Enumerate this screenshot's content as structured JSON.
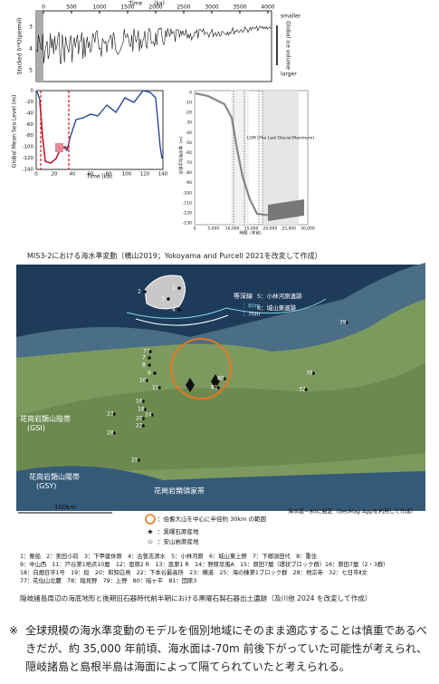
{
  "figure1": {
    "d18o": {
      "x_label": "Time",
      "x_unit": "(ka)",
      "x_ticks": [
        "0",
        "500",
        "1000",
        "1500",
        "2000",
        "2500",
        "3000",
        "3500",
        "4000"
      ],
      "y_label": "Stacked δ¹⁸O(permil)",
      "y_ticks": [
        "3",
        "4",
        "5"
      ],
      "right_labels": [
        "smaller",
        "Global ice volume",
        "larger"
      ]
    },
    "sea_level": {
      "y_label": "Global Mean Sea Level (m)",
      "y_ticks": [
        "0",
        "-20",
        "-40",
        "-60",
        "-80",
        "-100",
        "-120",
        "-140"
      ],
      "x_label": "Time (ka)",
      "x_ticks": [
        "0",
        "20",
        "40",
        "60",
        "80",
        "100",
        "120",
        "140"
      ]
    },
    "detail": {
      "y_label": "全球平均海水準（m）",
      "y_ticks": [
        "0",
        "-10",
        "-20",
        "-30",
        "-40",
        "-50",
        "-60",
        "-70",
        "-80",
        "-90",
        "-100",
        "-110",
        "-120",
        "-130"
      ],
      "x_label": "時間（年前）",
      "x_ticks": [
        "0",
        "5,000",
        "10,000",
        "15,000",
        "20,000",
        "25,000",
        "30,000"
      ],
      "lgm_label": "LGM (The Last Glacial Maximum)"
    },
    "caption": "MIS3-2における海水準変動（横山2019；Yokoyama and Purcell 2021を改変して作成）"
  },
  "map": {
    "contour_title": "等深線",
    "contour_80": "：80m",
    "contour_70": "：70m",
    "site_5": "5：小林河原遺跡",
    "site_6": "6：城山東遺跡",
    "gsi": "花崗岩類山陰帯\n(GSI)",
    "gsy": "花崗岩類山陽帯\n(GSY)",
    "ryoke": "花崗岩類領家帯",
    "scale": "100km",
    "site_numbers": [
      "2",
      "1",
      "3",
      "4",
      "79",
      "7",
      "8",
      "77",
      "9",
      "10",
      "11",
      "16",
      "18",
      "20",
      "24",
      "22",
      "23",
      "28",
      "25",
      "78",
      "32",
      "80",
      "81"
    ],
    "note": "海水面－80に設定（GeoMap Appを利用して作成）"
  },
  "legend": {
    "circle": "：伯耆大山を中心に半径約 30km の範囲",
    "star_black": "：黒曜石原産地",
    "star_white": "：安山岩原産地"
  },
  "site_list": [
    "1：栗船　2：美田小向　3：下甲建休原　4：古曽志清水　5：小林河原　6：城山東上野　7：下郷須田代　8：重住",
    "9：中山西　11：戸谷第1地点10層　12：恩原2 R　13：恩原1 R　14：野原早風A　15：原田7層（環状ブロック群）16：原田7層（2・3群）",
    "18：向畑日平1号　19：段　20：和知白鳥　22：下本谷最高所　23：横道　25：海の棟第1ブロック群　28：地宗寺　32：七日市Ⅱ文",
    "77：花仙山北麓　78：稲見野　79：上野　80：暗ヶ平　81：団原3"
  ],
  "caption2": "隠岐諸島周辺の海底地形と後期旧石器時代前半期における黒曜石製石器出土遺跡（及川他 2024 を改変して作成）",
  "note": {
    "mark": "※",
    "text": "全球規模の海水準変動のモデルを個別地域にそのまま適応することは慎重であるべきだが、約 35,000 年前頃、海水面は-70m 前後下がっていた可能性が考えられ、隠岐諸島と島根半島は海面によって隔てられていたと考えられる。"
  }
}
